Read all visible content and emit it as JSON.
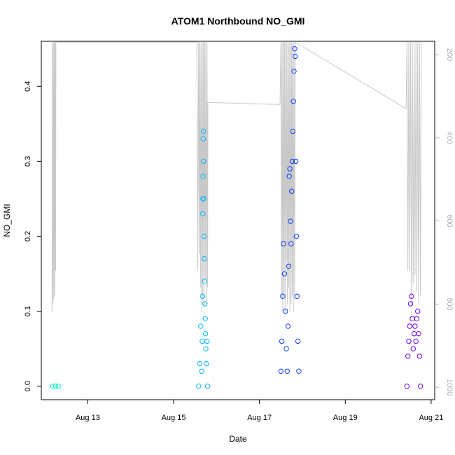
{
  "chart_data": {
    "type": "scatter",
    "title": "ATOM1 Northbound NO_GMI",
    "xlabel": "Date",
    "ylabel": "NO_GMI",
    "x_ticks": [
      "Aug 13",
      "Aug 15",
      "Aug 17",
      "Aug 19",
      "Aug 21"
    ],
    "y_ticks": [
      "0.0",
      "0.1",
      "0.2",
      "0.3",
      "0.4"
    ],
    "y_right_ticks": [
      "200",
      "400",
      "600",
      "800",
      "1000"
    ],
    "xlim": [
      "2016-08-11T22:00",
      "2016-08-21T02:00"
    ],
    "ylim": [
      -0.018,
      0.46
    ],
    "y_right_lim": [
      1030,
      168
    ],
    "y_right_reversed": true,
    "grid": false,
    "legend": "none",
    "colors": {
      "flight1": "#00f5c8",
      "flight2": "#00b8f5",
      "flight3": "#0a3cff",
      "flight4": "#6a00ff",
      "pressure": "#c8c8c8"
    },
    "series": [
      {
        "color": "#00f5c8",
        "x": [
          "2016-08-12T04:30",
          "2016-08-12T06:00",
          "2016-08-12T07:30"
        ],
        "y": [
          0.0,
          0.0,
          0.0
        ]
      },
      {
        "color": "#00b8f5",
        "x": [
          "2016-08-15T14:00",
          "2016-08-15T14:30",
          "2016-08-15T15:10",
          "2016-08-15T15:40",
          "2016-08-15T16:00",
          "2016-08-15T16:10",
          "2016-08-15T16:20",
          "2016-08-15T16:25",
          "2016-08-15T16:30",
          "2016-08-15T16:35",
          "2016-08-15T16:40",
          "2016-08-15T16:45",
          "2016-08-15T16:50",
          "2016-08-15T17:00",
          "2016-08-15T17:10",
          "2016-08-15T17:20",
          "2016-08-15T17:30",
          "2016-08-15T17:40",
          "2016-08-15T17:50",
          "2016-08-15T18:00",
          "2016-08-15T18:20",
          "2016-08-15T18:40",
          "2016-08-15T19:00"
        ],
        "y": [
          0.0,
          0.03,
          0.08,
          0.02,
          0.06,
          0.12,
          0.23,
          0.25,
          0.28,
          0.33,
          0.34,
          0.3,
          0.25,
          0.2,
          0.17,
          0.14,
          0.11,
          0.09,
          0.07,
          0.05,
          0.03,
          0.06,
          0.0
        ]
      },
      {
        "color": "#0a3cff",
        "x": [
          "2016-08-17T12:00",
          "2016-08-17T12:30",
          "2016-08-17T13:00",
          "2016-08-17T13:30",
          "2016-08-17T14:00",
          "2016-08-17T14:30",
          "2016-08-17T15:00",
          "2016-08-17T15:30",
          "2016-08-17T16:00",
          "2016-08-17T16:20",
          "2016-08-17T16:40",
          "2016-08-17T17:00",
          "2016-08-17T17:20",
          "2016-08-17T17:40",
          "2016-08-17T18:00",
          "2016-08-17T18:20",
          "2016-08-17T18:40",
          "2016-08-17T19:00",
          "2016-08-17T19:20",
          "2016-08-17T19:40",
          "2016-08-17T20:00",
          "2016-08-17T20:20",
          "2016-08-17T20:40",
          "2016-08-17T21:00",
          "2016-08-17T21:30",
          "2016-08-17T22:00"
        ],
        "y": [
          0.02,
          0.06,
          0.12,
          0.19,
          0.15,
          0.1,
          0.05,
          0.02,
          0.08,
          0.16,
          0.28,
          0.29,
          0.22,
          0.19,
          0.26,
          0.3,
          0.34,
          0.38,
          0.42,
          0.45,
          0.44,
          0.3,
          0.2,
          0.12,
          0.06,
          0.02
        ]
      },
      {
        "color": "#6a00ff",
        "x": [
          "2016-08-20T10:30",
          "2016-08-20T11:00",
          "2016-08-20T11:30",
          "2016-08-20T12:00",
          "2016-08-20T12:30",
          "2016-08-20T13:00",
          "2016-08-20T13:30",
          "2016-08-20T14:00",
          "2016-08-20T14:30",
          "2016-08-20T15:00",
          "2016-08-20T15:30",
          "2016-08-20T16:00",
          "2016-08-20T16:30",
          "2016-08-20T17:00",
          "2016-08-20T17:30",
          "2016-08-20T18:00"
        ],
        "y": [
          0.0,
          0.04,
          0.06,
          0.08,
          0.11,
          0.12,
          0.09,
          0.05,
          0.07,
          0.08,
          0.06,
          0.09,
          0.1,
          0.07,
          0.04,
          0.0
        ]
      }
    ],
    "pressure_series": {
      "color": "#c8c8c8",
      "axis": "right",
      "x": [
        "2016-08-12T04:00",
        "2016-08-12T04:15",
        "2016-08-12T04:30",
        "2016-08-12T04:45",
        "2016-08-12T05:00",
        "2016-08-12T05:15",
        "2016-08-12T05:30",
        "2016-08-12T05:45",
        "2016-08-12T06:00",
        "2016-08-12T06:10",
        "2016-08-12T06:20",
        "2016-08-15T13:00",
        "2016-08-15T13:30",
        "2016-08-15T14:00",
        "2016-08-15T14:20",
        "2016-08-15T14:40",
        "2016-08-15T15:00",
        "2016-08-15T15:20",
        "2016-08-15T15:40",
        "2016-08-15T16:00",
        "2016-08-15T16:20",
        "2016-08-15T16:40",
        "2016-08-15T17:00",
        "2016-08-15T17:20",
        "2016-08-15T17:40",
        "2016-08-15T18:00",
        "2016-08-15T18:20",
        "2016-08-15T18:40",
        "2016-08-15T19:00",
        "2016-08-15T19:10",
        "2016-08-17T11:30",
        "2016-08-17T12:00",
        "2016-08-17T12:20",
        "2016-08-17T12:40",
        "2016-08-17T13:00",
        "2016-08-17T13:20",
        "2016-08-17T13:40",
        "2016-08-17T14:00",
        "2016-08-17T14:20",
        "2016-08-17T14:40",
        "2016-08-17T15:00",
        "2016-08-17T15:20",
        "2016-08-17T15:40",
        "2016-08-17T16:00",
        "2016-08-17T16:20",
        "2016-08-17T16:40",
        "2016-08-17T17:00",
        "2016-08-17T17:20",
        "2016-08-17T17:40",
        "2016-08-17T18:00",
        "2016-08-17T18:20",
        "2016-08-17T18:40",
        "2016-08-17T19:00",
        "2016-08-17T19:20",
        "2016-08-17T19:40",
        "2016-08-17T20:00",
        "2016-08-20T10:00",
        "2016-08-20T10:30",
        "2016-08-20T11:00",
        "2016-08-20T11:30",
        "2016-08-20T12:00",
        "2016-08-20T12:30",
        "2016-08-20T13:00",
        "2016-08-20T13:30",
        "2016-08-20T14:00",
        "2016-08-20T14:30",
        "2016-08-20T15:00",
        "2016-08-20T15:30",
        "2016-08-20T16:00",
        "2016-08-20T16:30",
        "2016-08-20T17:00",
        "2016-08-20T17:30",
        "2016-08-20T18:00",
        "2016-08-20T18:30"
      ],
      "y": [
        820,
        170,
        800,
        170,
        790,
        170,
        780,
        170,
        720,
        170,
        170,
        170,
        720,
        170,
        680,
        170,
        760,
        170,
        820,
        170,
        790,
        170,
        810,
        170,
        740,
        170,
        800,
        170,
        760,
        315,
        320,
        170,
        790,
        170,
        820,
        170,
        780,
        170,
        820,
        170,
        700,
        170,
        800,
        170,
        760,
        170,
        820,
        170,
        800,
        170,
        780,
        170,
        820,
        170,
        790,
        170,
        330,
        170,
        720,
        170,
        720,
        170,
        800,
        170,
        750,
        170,
        730,
        170,
        770,
        170,
        800,
        170,
        780,
        170
      ]
    }
  }
}
